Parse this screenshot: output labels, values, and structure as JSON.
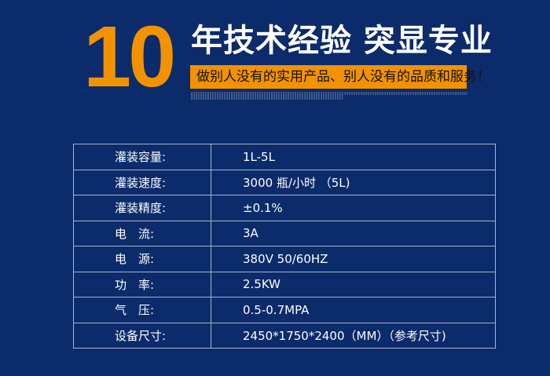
{
  "header": {
    "number": "10",
    "title": "年技术经验 突显专业",
    "slogan": "做别人没有的实用产品、别人没有的品质和服务！"
  },
  "colors": {
    "background": "#0b2b6b",
    "accent": "#f39200"
  },
  "specs": [
    {
      "label": "灌装容量:",
      "value": "1L-5L"
    },
    {
      "label": "灌装速度:",
      "value": "3000 瓶/小时 （5L)"
    },
    {
      "label": "灌装精度:",
      "value": "±0.1%"
    },
    {
      "label": "电　流:",
      "value": "3A"
    },
    {
      "label": "电　源:",
      "value": "380V 50/60HZ"
    },
    {
      "label": "功　率:",
      "value": "2.5KW"
    },
    {
      "label": "气　压:",
      "value": "0.5-0.7MPA"
    },
    {
      "label": "设备尺寸:",
      "value": "2450*1750*2400（MM）（参考尺寸)"
    }
  ]
}
